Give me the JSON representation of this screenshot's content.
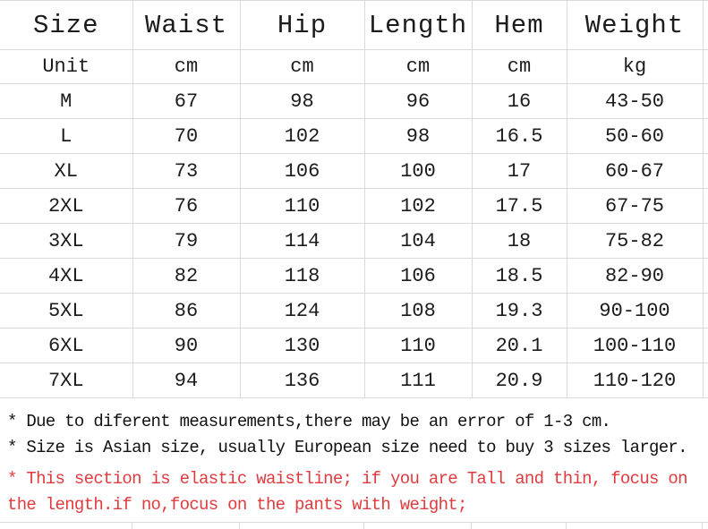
{
  "table": {
    "header": [
      "Size",
      "Waist",
      "Hip",
      "Length",
      "Hem",
      "Weight"
    ],
    "rows": [
      [
        "Unit",
        "cm",
        "cm",
        "cm",
        "cm",
        "kg"
      ],
      [
        "M",
        "67",
        "98",
        "96",
        "16",
        "43-50"
      ],
      [
        "L",
        "70",
        "102",
        "98",
        "16.5",
        "50-60"
      ],
      [
        "XL",
        "73",
        "106",
        "100",
        "17",
        "60-67"
      ],
      [
        "2XL",
        "76",
        "110",
        "102",
        "17.5",
        "67-75"
      ],
      [
        "3XL",
        "79",
        "114",
        "104",
        "18",
        "75-82"
      ],
      [
        "4XL",
        "82",
        "118",
        "106",
        "18.5",
        "82-90"
      ],
      [
        "5XL",
        "86",
        "124",
        "108",
        "19.3",
        "90-100"
      ],
      [
        "6XL",
        "90",
        "130",
        "110",
        "20.1",
        "100-110"
      ],
      [
        "7XL",
        "94",
        "136",
        "111",
        "20.9",
        "110-120"
      ]
    ]
  },
  "notes": [
    {
      "text": "* Due to diferent measurements,there may be an error of 1-3 cm.",
      "color": "black"
    },
    {
      "text": "* Size is Asian size, usually European size need to buy 3 sizes larger.",
      "color": "black"
    },
    {
      "text": "* This section is elastic waistline; if you are Tall and thin, focus on",
      "color": "red"
    },
    {
      "text": "the length.if no,focus on the pants with weight;",
      "color": "red"
    }
  ],
  "colors": {
    "note_red": "#e03a3e",
    "grid_line": "#d9d9d9",
    "text": "#1c1c1c",
    "background": "#ffffff"
  }
}
